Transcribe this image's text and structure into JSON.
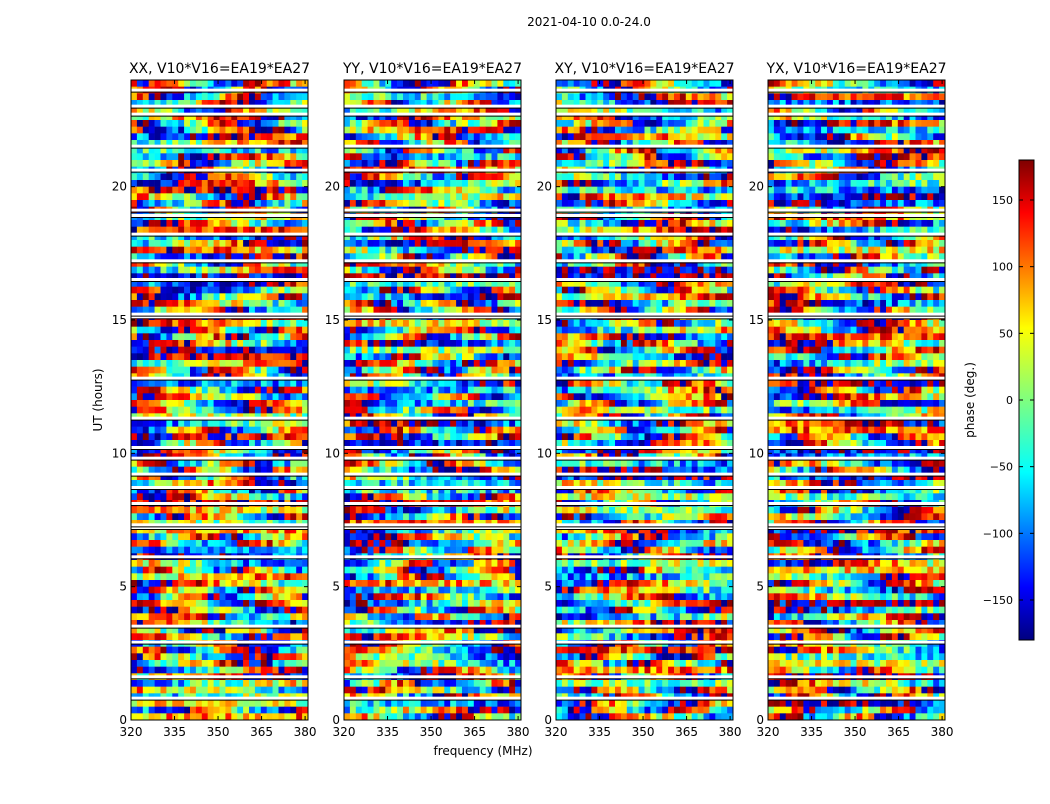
{
  "figure": {
    "suptitle": "2021-04-10 0.0-24.0",
    "xlabel": "frequency (MHz)",
    "ylabel": "UT (hours)",
    "colorbar_label": "phase (deg.)"
  },
  "chart_data": {
    "type": "heatmap",
    "title": "2021-04-10 0.0-24.0",
    "xlabel": "frequency (MHz)",
    "ylabel": "UT (hours)",
    "xlim": [
      320,
      381
    ],
    "ylim": [
      0,
      24
    ],
    "x_ticks": [
      320,
      335,
      350,
      365,
      380
    ],
    "y_ticks": [
      0,
      5,
      10,
      15,
      20
    ],
    "colormap": "jet",
    "colorbar": {
      "label": "phase (deg.)",
      "range": [
        -180,
        180
      ],
      "ticks": [
        -150,
        -100,
        -50,
        0,
        50,
        100,
        150
      ],
      "tick_labels": [
        "−150",
        "−100",
        "−50",
        "0",
        "50",
        "100",
        "150"
      ]
    },
    "panels": [
      {
        "title": "XX, V10*V16=EA19*EA27"
      },
      {
        "title": "YY, V10*V16=EA19*EA27"
      },
      {
        "title": "XY, V10*V16=EA19*EA27"
      },
      {
        "title": "YX, V10*V16=EA19*EA27"
      }
    ],
    "flagged_hours": [
      0.8,
      1.6,
      2.9,
      3.5,
      6.1,
      7.2,
      7.3,
      8.1,
      8.7,
      9.2,
      9.8,
      10.2,
      11.3,
      12.8,
      15.1,
      15.2,
      16.5,
      17.2,
      18.2,
      18.9,
      19.1,
      20.6,
      21.5,
      22.7,
      23.0,
      23.6
    ]
  },
  "colors": {
    "axis": "#000000",
    "flag": "#ffffff"
  }
}
